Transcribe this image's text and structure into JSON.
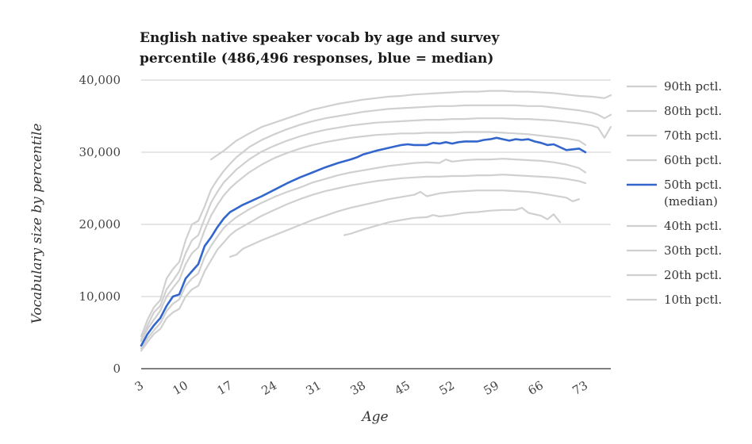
{
  "chart_data": {
    "type": "line",
    "title_lines": [
      "English native speaker vocab by age and survey",
      "percentile (486,496 responses, blue = median)"
    ],
    "xlabel": "Age",
    "ylabel": "Vocabulary size by percentile",
    "xlim": [
      3,
      77
    ],
    "ylim": [
      0,
      40000
    ],
    "x_ticks": [
      3,
      10,
      17,
      24,
      31,
      38,
      45,
      52,
      59,
      66,
      73
    ],
    "y_ticks": [
      0,
      10000,
      20000,
      30000,
      40000
    ],
    "y_tick_labels": [
      "0",
      "10,000",
      "20,000",
      "30,000",
      "40,000"
    ],
    "grid": "horizontal",
    "legend_position": "right",
    "colors": {
      "other": "#d0d0d0",
      "median": "#3366cc",
      "axis": "#333333",
      "grid": "#cccccc"
    },
    "series": [
      {
        "name": "90th pctl.",
        "x": [
          14,
          16,
          18,
          20,
          22,
          24,
          26,
          28,
          30,
          32,
          34,
          36,
          38,
          40,
          42,
          44,
          46,
          48,
          50,
          52,
          54,
          56,
          58,
          60,
          62,
          64,
          66,
          68,
          70,
          72,
          74,
          76,
          77
        ],
        "values": [
          29000,
          30200,
          31600,
          32600,
          33500,
          34100,
          34700,
          35300,
          35900,
          36300,
          36700,
          37000,
          37300,
          37500,
          37700,
          37800,
          38000,
          38100,
          38200,
          38300,
          38400,
          38400,
          38500,
          38500,
          38400,
          38400,
          38300,
          38200,
          38000,
          37800,
          37700,
          37500,
          37900
        ]
      },
      {
        "name": "80th pctl.",
        "x": [
          3,
          4,
          5,
          6,
          7,
          8,
          9,
          10,
          11,
          12,
          13,
          14,
          15,
          16,
          17,
          18,
          20,
          22,
          24,
          26,
          28,
          30,
          32,
          34,
          36,
          38,
          40,
          42,
          44,
          46,
          48,
          50,
          52,
          54,
          56,
          58,
          60,
          62,
          64,
          66,
          68,
          70,
          72,
          74,
          75,
          76,
          77
        ],
        "values": [
          4500,
          6800,
          8500,
          9500,
          12500,
          13800,
          14800,
          17800,
          20000,
          20500,
          22500,
          24800,
          26200,
          27400,
          28400,
          29300,
          30700,
          31700,
          32500,
          33200,
          33800,
          34300,
          34700,
          35000,
          35300,
          35600,
          35800,
          36000,
          36100,
          36200,
          36300,
          36400,
          36400,
          36500,
          36500,
          36500,
          36500,
          36500,
          36400,
          36400,
          36200,
          36000,
          35800,
          35500,
          35200,
          34700,
          35200
        ]
      },
      {
        "name": "70th pctl.",
        "x": [
          3,
          4,
          5,
          6,
          7,
          8,
          9,
          10,
          11,
          12,
          13,
          14,
          15,
          16,
          17,
          18,
          20,
          22,
          24,
          26,
          28,
          30,
          32,
          34,
          36,
          38,
          40,
          42,
          44,
          46,
          48,
          50,
          52,
          54,
          56,
          58,
          60,
          62,
          64,
          66,
          68,
          70,
          72,
          74,
          75,
          76,
          77
        ],
        "values": [
          4000,
          6000,
          7800,
          8700,
          11000,
          12200,
          13500,
          16000,
          17800,
          18500,
          20800,
          23000,
          24500,
          25800,
          26700,
          27600,
          29000,
          30100,
          30900,
          31600,
          32200,
          32700,
          33100,
          33400,
          33700,
          33900,
          34100,
          34200,
          34300,
          34400,
          34500,
          34500,
          34600,
          34600,
          34700,
          34700,
          34700,
          34600,
          34600,
          34500,
          34400,
          34200,
          34000,
          33700,
          33400,
          32000,
          33500
        ]
      },
      {
        "name": "60th pctl.",
        "x": [
          3,
          4,
          5,
          6,
          7,
          8,
          9,
          10,
          11,
          12,
          13,
          14,
          15,
          16,
          17,
          18,
          20,
          22,
          24,
          26,
          28,
          30,
          32,
          34,
          36,
          38,
          40,
          42,
          44,
          46,
          48,
          50,
          52,
          54,
          56,
          58,
          60,
          62,
          64,
          66,
          68,
          70,
          72,
          73
        ],
        "values": [
          3800,
          5500,
          6800,
          8000,
          10000,
          11200,
          12300,
          14500,
          16000,
          16800,
          19200,
          21200,
          22700,
          24000,
          25000,
          25800,
          27200,
          28300,
          29200,
          29900,
          30500,
          31000,
          31400,
          31700,
          32000,
          32200,
          32400,
          32500,
          32600,
          32600,
          32700,
          32700,
          32700,
          32800,
          32800,
          32800,
          32700,
          32600,
          32500,
          32300,
          32100,
          31900,
          31600,
          31000
        ]
      },
      {
        "name": "50th pctl. (median)",
        "median": true,
        "x": [
          3,
          4,
          5,
          6,
          7,
          8,
          9,
          10,
          11,
          12,
          13,
          14,
          15,
          16,
          17,
          18,
          19,
          20,
          22,
          24,
          26,
          28,
          30,
          32,
          34,
          36,
          37,
          38,
          40,
          42,
          44,
          45,
          46,
          48,
          49,
          50,
          51,
          52,
          53,
          54,
          56,
          57,
          58,
          59,
          60,
          61,
          62,
          63,
          64,
          65,
          66,
          67,
          68,
          70,
          72,
          73
        ],
        "values": [
          3200,
          4800,
          6000,
          7000,
          8700,
          10000,
          10300,
          12500,
          13500,
          14500,
          17000,
          18200,
          19600,
          20800,
          21700,
          22200,
          22700,
          23100,
          23900,
          24800,
          25700,
          26500,
          27200,
          27900,
          28500,
          29000,
          29300,
          29700,
          30200,
          30600,
          31000,
          31100,
          31000,
          31000,
          31300,
          31200,
          31400,
          31200,
          31400,
          31500,
          31500,
          31700,
          31800,
          32000,
          31800,
          31600,
          31800,
          31700,
          31800,
          31500,
          31300,
          31000,
          31100,
          30300,
          30500,
          30000
        ]
      },
      {
        "name": "40th pctl.",
        "x": [
          3,
          4,
          5,
          6,
          7,
          8,
          9,
          10,
          11,
          12,
          13,
          14,
          15,
          16,
          17,
          18,
          20,
          22,
          24,
          26,
          28,
          30,
          32,
          34,
          36,
          38,
          40,
          42,
          44,
          46,
          48,
          50,
          51,
          52,
          54,
          56,
          58,
          60,
          62,
          64,
          66,
          68,
          70,
          72,
          73
        ],
        "values": [
          2800,
          4200,
          5300,
          6300,
          8000,
          9000,
          9600,
          11500,
          12500,
          13200,
          15500,
          17000,
          18300,
          19500,
          20300,
          21000,
          22100,
          23000,
          23800,
          24500,
          25100,
          25800,
          26300,
          26800,
          27200,
          27500,
          27800,
          28100,
          28300,
          28500,
          28600,
          28500,
          29000,
          28700,
          28900,
          29000,
          29000,
          29100,
          29000,
          28900,
          28800,
          28600,
          28300,
          27800,
          27200
        ]
      },
      {
        "name": "30th pctl.",
        "x": [
          3,
          4,
          5,
          6,
          7,
          8,
          9,
          10,
          11,
          12,
          13,
          14,
          15,
          16,
          17,
          18,
          20,
          22,
          24,
          26,
          28,
          30,
          32,
          34,
          36,
          38,
          40,
          42,
          44,
          46,
          48,
          50,
          52,
          54,
          56,
          58,
          60,
          62,
          64,
          66,
          68,
          70,
          72,
          73
        ],
        "values": [
          2500,
          3700,
          4800,
          5500,
          7000,
          7800,
          8300,
          10000,
          11000,
          11500,
          13500,
          15000,
          16500,
          17500,
          18500,
          19200,
          20200,
          21200,
          22000,
          22800,
          23500,
          24100,
          24600,
          25000,
          25400,
          25700,
          26000,
          26200,
          26400,
          26500,
          26600,
          26600,
          26700,
          26700,
          26800,
          26800,
          26900,
          26800,
          26700,
          26600,
          26500,
          26300,
          26000,
          25700
        ]
      },
      {
        "name": "20th pctl.",
        "x": [
          17,
          18,
          19,
          20,
          22,
          24,
          26,
          28,
          30,
          32,
          34,
          36,
          38,
          40,
          42,
          44,
          46,
          47,
          48,
          50,
          52,
          54,
          56,
          58,
          60,
          62,
          64,
          66,
          68,
          70,
          71,
          72
        ],
        "values": [
          15500,
          15800,
          16600,
          17000,
          17800,
          18500,
          19200,
          19900,
          20600,
          21200,
          21800,
          22300,
          22700,
          23100,
          23500,
          23800,
          24100,
          24500,
          23900,
          24300,
          24500,
          24600,
          24700,
          24700,
          24700,
          24600,
          24500,
          24300,
          24000,
          23700,
          23200,
          23500
        ]
      },
      {
        "name": "10th pctl.",
        "x": [
          35,
          36,
          37,
          38,
          40,
          42,
          44,
          46,
          48,
          49,
          50,
          52,
          54,
          56,
          58,
          60,
          62,
          63,
          64,
          66,
          67,
          68,
          69
        ],
        "values": [
          18500,
          18700,
          19000,
          19300,
          19800,
          20300,
          20600,
          20900,
          21000,
          21300,
          21100,
          21300,
          21600,
          21700,
          21900,
          22000,
          22000,
          22300,
          21600,
          21200,
          20700,
          21400,
          20300
        ]
      }
    ]
  }
}
